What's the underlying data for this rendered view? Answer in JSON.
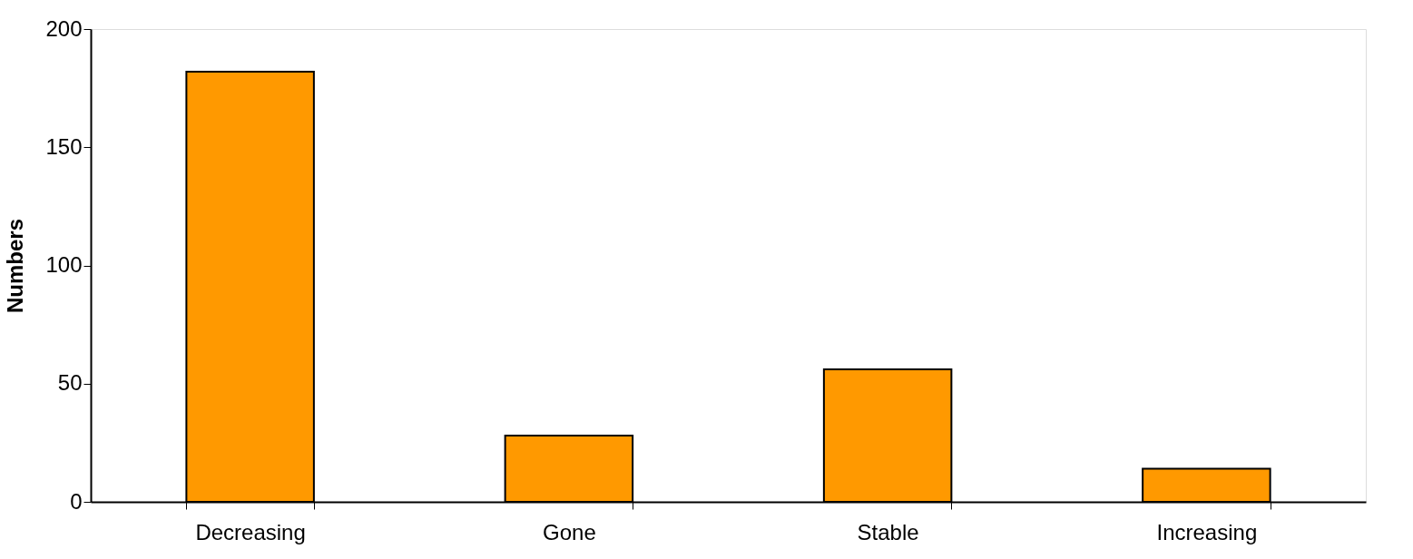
{
  "chart_data": {
    "type": "bar",
    "ylabel": "Numbers",
    "categories": [
      "Decreasing",
      "Gone",
      "Stable",
      "Increasing"
    ],
    "values": [
      182,
      28,
      56,
      14
    ],
    "color": "#ff9900",
    "ylim": [
      0,
      200
    ],
    "yticks": [
      0,
      50,
      100,
      150,
      200
    ],
    "grid": false
  }
}
